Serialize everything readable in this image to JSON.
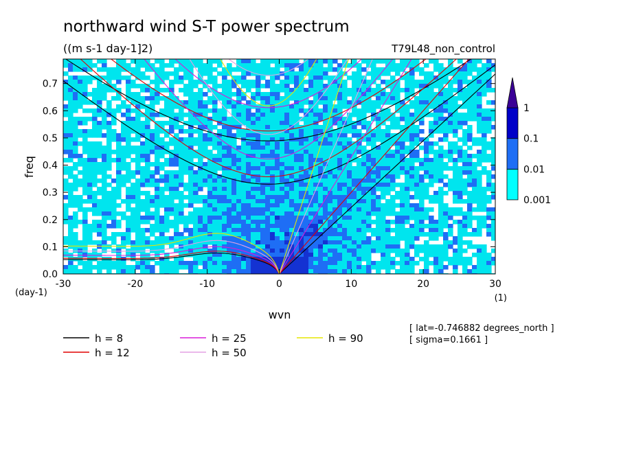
{
  "chart_data": {
    "type": "heatmap",
    "title": "northward wind S-T power spectrum",
    "units": "((m s-1 day-1]2)",
    "run_label": "T79L48_non_control",
    "xlabel": "wvn",
    "ylabel": "freq",
    "x_unit": "(1)",
    "y_unit": "(day-1)",
    "xlim": [
      -30,
      30
    ],
    "ylim": [
      0,
      0.79
    ],
    "x_ticks": [
      "-30",
      "-20",
      "-10",
      "0",
      "10",
      "20",
      "30"
    ],
    "x_tick_values": [
      -30,
      -20,
      -10,
      0,
      10,
      20,
      30
    ],
    "y_ticks": [
      "0.0",
      "0.1",
      "0.2",
      "0.3",
      "0.4",
      "0.5",
      "0.6",
      "0.7"
    ],
    "y_tick_values": [
      0,
      0.1,
      0.2,
      0.3,
      0.4,
      0.5,
      0.6,
      0.7
    ],
    "colorbar": {
      "levels": [
        "0.001",
        "0.01",
        "0.1",
        "1"
      ],
      "level_values": [
        0.001,
        0.01,
        0.1,
        1
      ],
      "colors": [
        "#00ffff",
        "#1e6ef5",
        "#0000c8",
        "#3a0096"
      ],
      "scale": "log"
    },
    "fill_colors": {
      "below": "#ffffff",
      "level1": "#00e5ee",
      "level2": "#1e6ef5",
      "level3": "#1432d2"
    },
    "dispersion_curves": [
      {
        "h": 8,
        "color": "#000000"
      },
      {
        "h": 12,
        "color": "#e00000"
      },
      {
        "h": 25,
        "color": "#d81bd8"
      },
      {
        "h": 50,
        "color": "#e4a0e4"
      },
      {
        "h": 90,
        "color": "#e6e600"
      }
    ],
    "legend": [
      {
        "label": "h =  8",
        "color": "#000000"
      },
      {
        "label": "h = 12",
        "color": "#e00000"
      },
      {
        "label": "h = 25",
        "color": "#d81bd8"
      },
      {
        "label": "h = 50",
        "color": "#e4a0e4"
      },
      {
        "label": "h = 90",
        "color": "#e6e600"
      }
    ],
    "annotations": {
      "lat": "[ lat=-0.746882 degrees_north ]",
      "sigma": "[ sigma=0.1661 ]"
    },
    "grid": false
  }
}
